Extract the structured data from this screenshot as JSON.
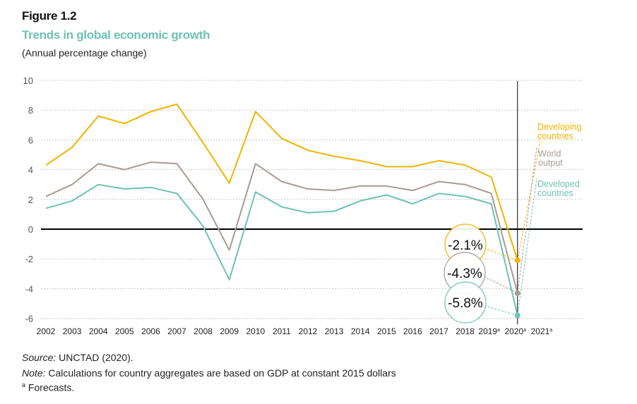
{
  "figure_label": "Figure 1.2",
  "title": "Trends in global economic growth",
  "subtitle": "(Annual percentage change)",
  "footer": {
    "source_label": "Source:",
    "source_text": " UNCTAD (2020).",
    "note_label": "Note:",
    "note_text": " Calculations for country aggregates are based on GDP at constant 2015 dollars",
    "footnote_mark": "a",
    "footnote_text": " Forecasts."
  },
  "colors": {
    "developing": "#f0b400",
    "world": "#a99a94",
    "developed": "#6ec1b4",
    "title": "#6ec1b4"
  },
  "chart_data": {
    "type": "line",
    "title": "Trends in global economic growth",
    "ylabel": "Annual percentage change",
    "ylim": [
      -6,
      10
    ],
    "yticks": [
      10,
      8,
      6,
      4,
      2,
      0,
      -2,
      -4,
      -6
    ],
    "grid": true,
    "categories": [
      "2002",
      "2003",
      "2004",
      "2005",
      "2006",
      "2007",
      "2008",
      "2009",
      "2010",
      "2011",
      "2012",
      "2013",
      "2014",
      "2015",
      "2016",
      "2017",
      "2018",
      "2019a",
      "2020a",
      "2021a"
    ],
    "series": [
      {
        "name": "Developing countries",
        "key": "developing",
        "values": [
          4.3,
          5.5,
          7.6,
          7.1,
          7.9,
          8.4,
          5.8,
          3.1,
          7.9,
          6.1,
          5.3,
          4.9,
          4.6,
          4.2,
          4.2,
          4.6,
          4.3,
          3.5,
          -2.1,
          null
        ]
      },
      {
        "name": "World output",
        "key": "world",
        "values": [
          2.2,
          3.0,
          4.4,
          4.0,
          4.5,
          4.4,
          2.0,
          -1.4,
          4.4,
          3.2,
          2.7,
          2.6,
          2.9,
          2.9,
          2.6,
          3.2,
          3.0,
          2.4,
          -4.3,
          null
        ]
      },
      {
        "name": "Developed countries",
        "key": "developed",
        "values": [
          1.4,
          1.9,
          3.0,
          2.7,
          2.8,
          2.4,
          0.2,
          -3.4,
          2.5,
          1.5,
          1.1,
          1.2,
          1.9,
          2.3,
          1.7,
          2.4,
          2.2,
          1.7,
          -5.8,
          null
        ]
      }
    ],
    "legend": [
      {
        "key": "developing",
        "line1": "Developing",
        "line2": "countries"
      },
      {
        "key": "world",
        "line1": "World",
        "line2": "output"
      },
      {
        "key": "developed",
        "line1": "Developed",
        "line2": "countries"
      }
    ],
    "annotations": [
      {
        "key": "developing",
        "text": "-2.1%"
      },
      {
        "key": "world",
        "text": "-4.3%"
      },
      {
        "key": "developed",
        "text": "-5.8%"
      }
    ],
    "vertical_marker_at": "2020a"
  }
}
